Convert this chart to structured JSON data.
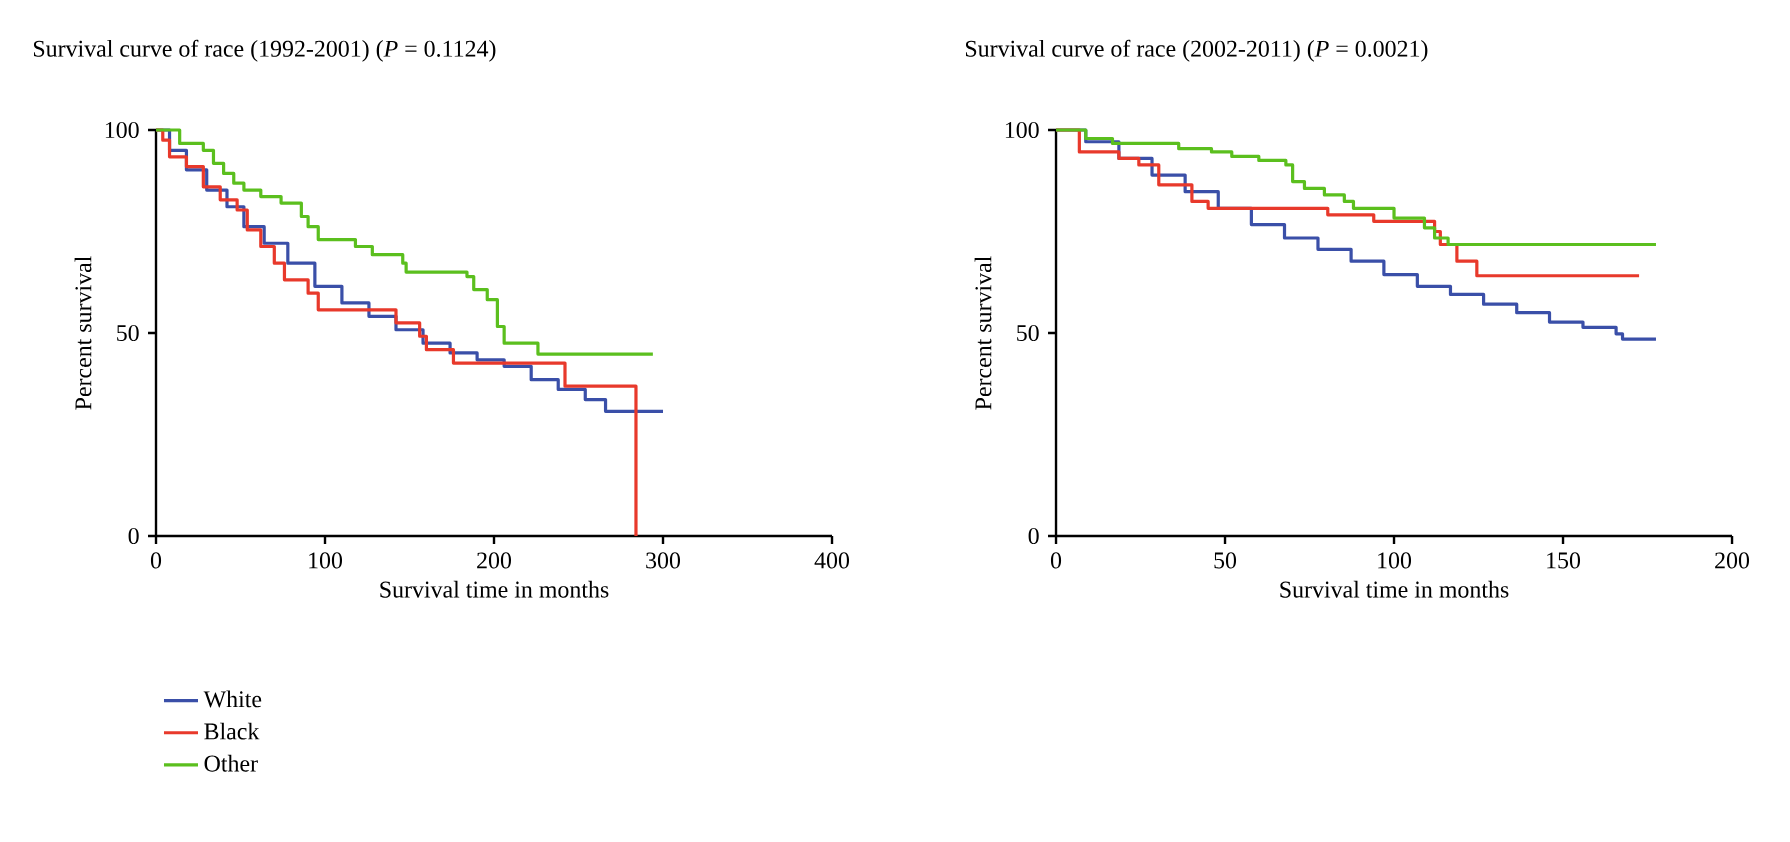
{
  "chart_data": [
    {
      "type": "step",
      "title": "Survival curve of race (1992-2001) (*P* = 0.1124)",
      "xlabel": "Survival time in months",
      "ylabel": "Percent survival",
      "xlim": [
        0,
        400
      ],
      "xticks": [
        0,
        100,
        200,
        300,
        400
      ],
      "ylim": [
        0,
        100
      ],
      "yticks": [
        0,
        50,
        100
      ],
      "legend": "bottom left",
      "series": [
        {
          "name": "White",
          "color": "#3a4fa8",
          "x": [
            0,
            8,
            18,
            30,
            42,
            52,
            64,
            78,
            94,
            110,
            126,
            142,
            158,
            174,
            190,
            206,
            222,
            238,
            254,
            266,
            300
          ],
          "values": [
            100,
            95,
            90.2,
            85.2,
            81.1,
            76.2,
            72.1,
            67.2,
            61.5,
            57.4,
            54.1,
            50.8,
            47.5,
            45.1,
            43.4,
            41.8,
            38.5,
            36.1,
            33.6,
            30.7,
            30.7
          ]
        },
        {
          "name": "Black",
          "color": "#e8392b",
          "x": [
            0,
            4,
            8,
            18,
            28,
            38,
            48,
            54,
            62,
            70,
            76,
            90,
            96,
            142,
            156,
            160,
            176,
            242,
            284
          ],
          "values": [
            100,
            97.5,
            93.4,
            91,
            86,
            82.8,
            80.3,
            75.4,
            71.3,
            67.2,
            63.1,
            59.8,
            55.7,
            52.5,
            49.2,
            45.9,
            42.6,
            36.9,
            0
          ]
        },
        {
          "name": "Other",
          "color": "#5bbf1e",
          "x": [
            0,
            14,
            28,
            34,
            40,
            46,
            52,
            62,
            74,
            86,
            90,
            96,
            118,
            128,
            146,
            148,
            184,
            188,
            196,
            202,
            206,
            226,
            294
          ],
          "values": [
            100,
            96.7,
            95,
            91.8,
            89.3,
            86.9,
            85.2,
            83.6,
            82,
            78.7,
            76.2,
            73,
            71.3,
            69.3,
            67.2,
            65,
            63.9,
            60.7,
            58.2,
            51.6,
            47.5,
            44.8,
            44.8
          ]
        }
      ]
    },
    {
      "type": "step",
      "title": "Survival curve of race (2002-2011) (*P* = 0.0021)",
      "xlabel": "Survival time in months",
      "ylabel": "Percent survival",
      "xlim": [
        0,
        200
      ],
      "xticks": [
        0,
        50,
        100,
        150,
        200
      ],
      "ylim": [
        0,
        100
      ],
      "yticks": [
        0,
        50,
        100
      ],
      "series": [
        {
          "color": "#3a4fa8",
          "x": [
            0,
            8.8,
            18.6,
            28.4,
            38.2,
            48,
            57.8,
            67.6,
            77.5,
            87.3,
            97,
            106.9,
            116.7,
            126.5,
            136.3,
            146,
            155.9,
            165.7,
            167.6,
            177.5
          ],
          "values": [
            100,
            97.1,
            93,
            88.9,
            84.8,
            80.7,
            76.7,
            73.4,
            70.6,
            67.7,
            64.4,
            61.5,
            59.5,
            57.1,
            55,
            52.7,
            51.4,
            49.8,
            48.5,
            48.5
          ]
        },
        {
          "color": "#e8392b",
          "x": [
            0,
            6.9,
            18.6,
            24.5,
            30.4,
            40.2,
            45,
            80.4,
            94,
            112,
            113.7,
            118.6,
            124.5,
            172.5
          ],
          "values": [
            100,
            94.6,
            93,
            91.4,
            86.5,
            82.4,
            80.7,
            79.1,
            77.5,
            75,
            71.8,
            67.7,
            64.1,
            64.1
          ]
        },
        {
          "color": "#5bbf1e",
          "x": [
            0,
            8.8,
            16.7,
            36.3,
            46,
            52,
            60,
            68,
            70,
            73.5,
            79.4,
            85.3,
            88,
            100,
            109,
            112,
            116,
            177.5
          ],
          "values": [
            100,
            97.9,
            96.7,
            95.4,
            94.6,
            93.5,
            92.5,
            91.4,
            87.3,
            85.6,
            84,
            82.4,
            80.7,
            78.3,
            75.9,
            73.4,
            71.8,
            71.8
          ]
        }
      ]
    }
  ]
}
